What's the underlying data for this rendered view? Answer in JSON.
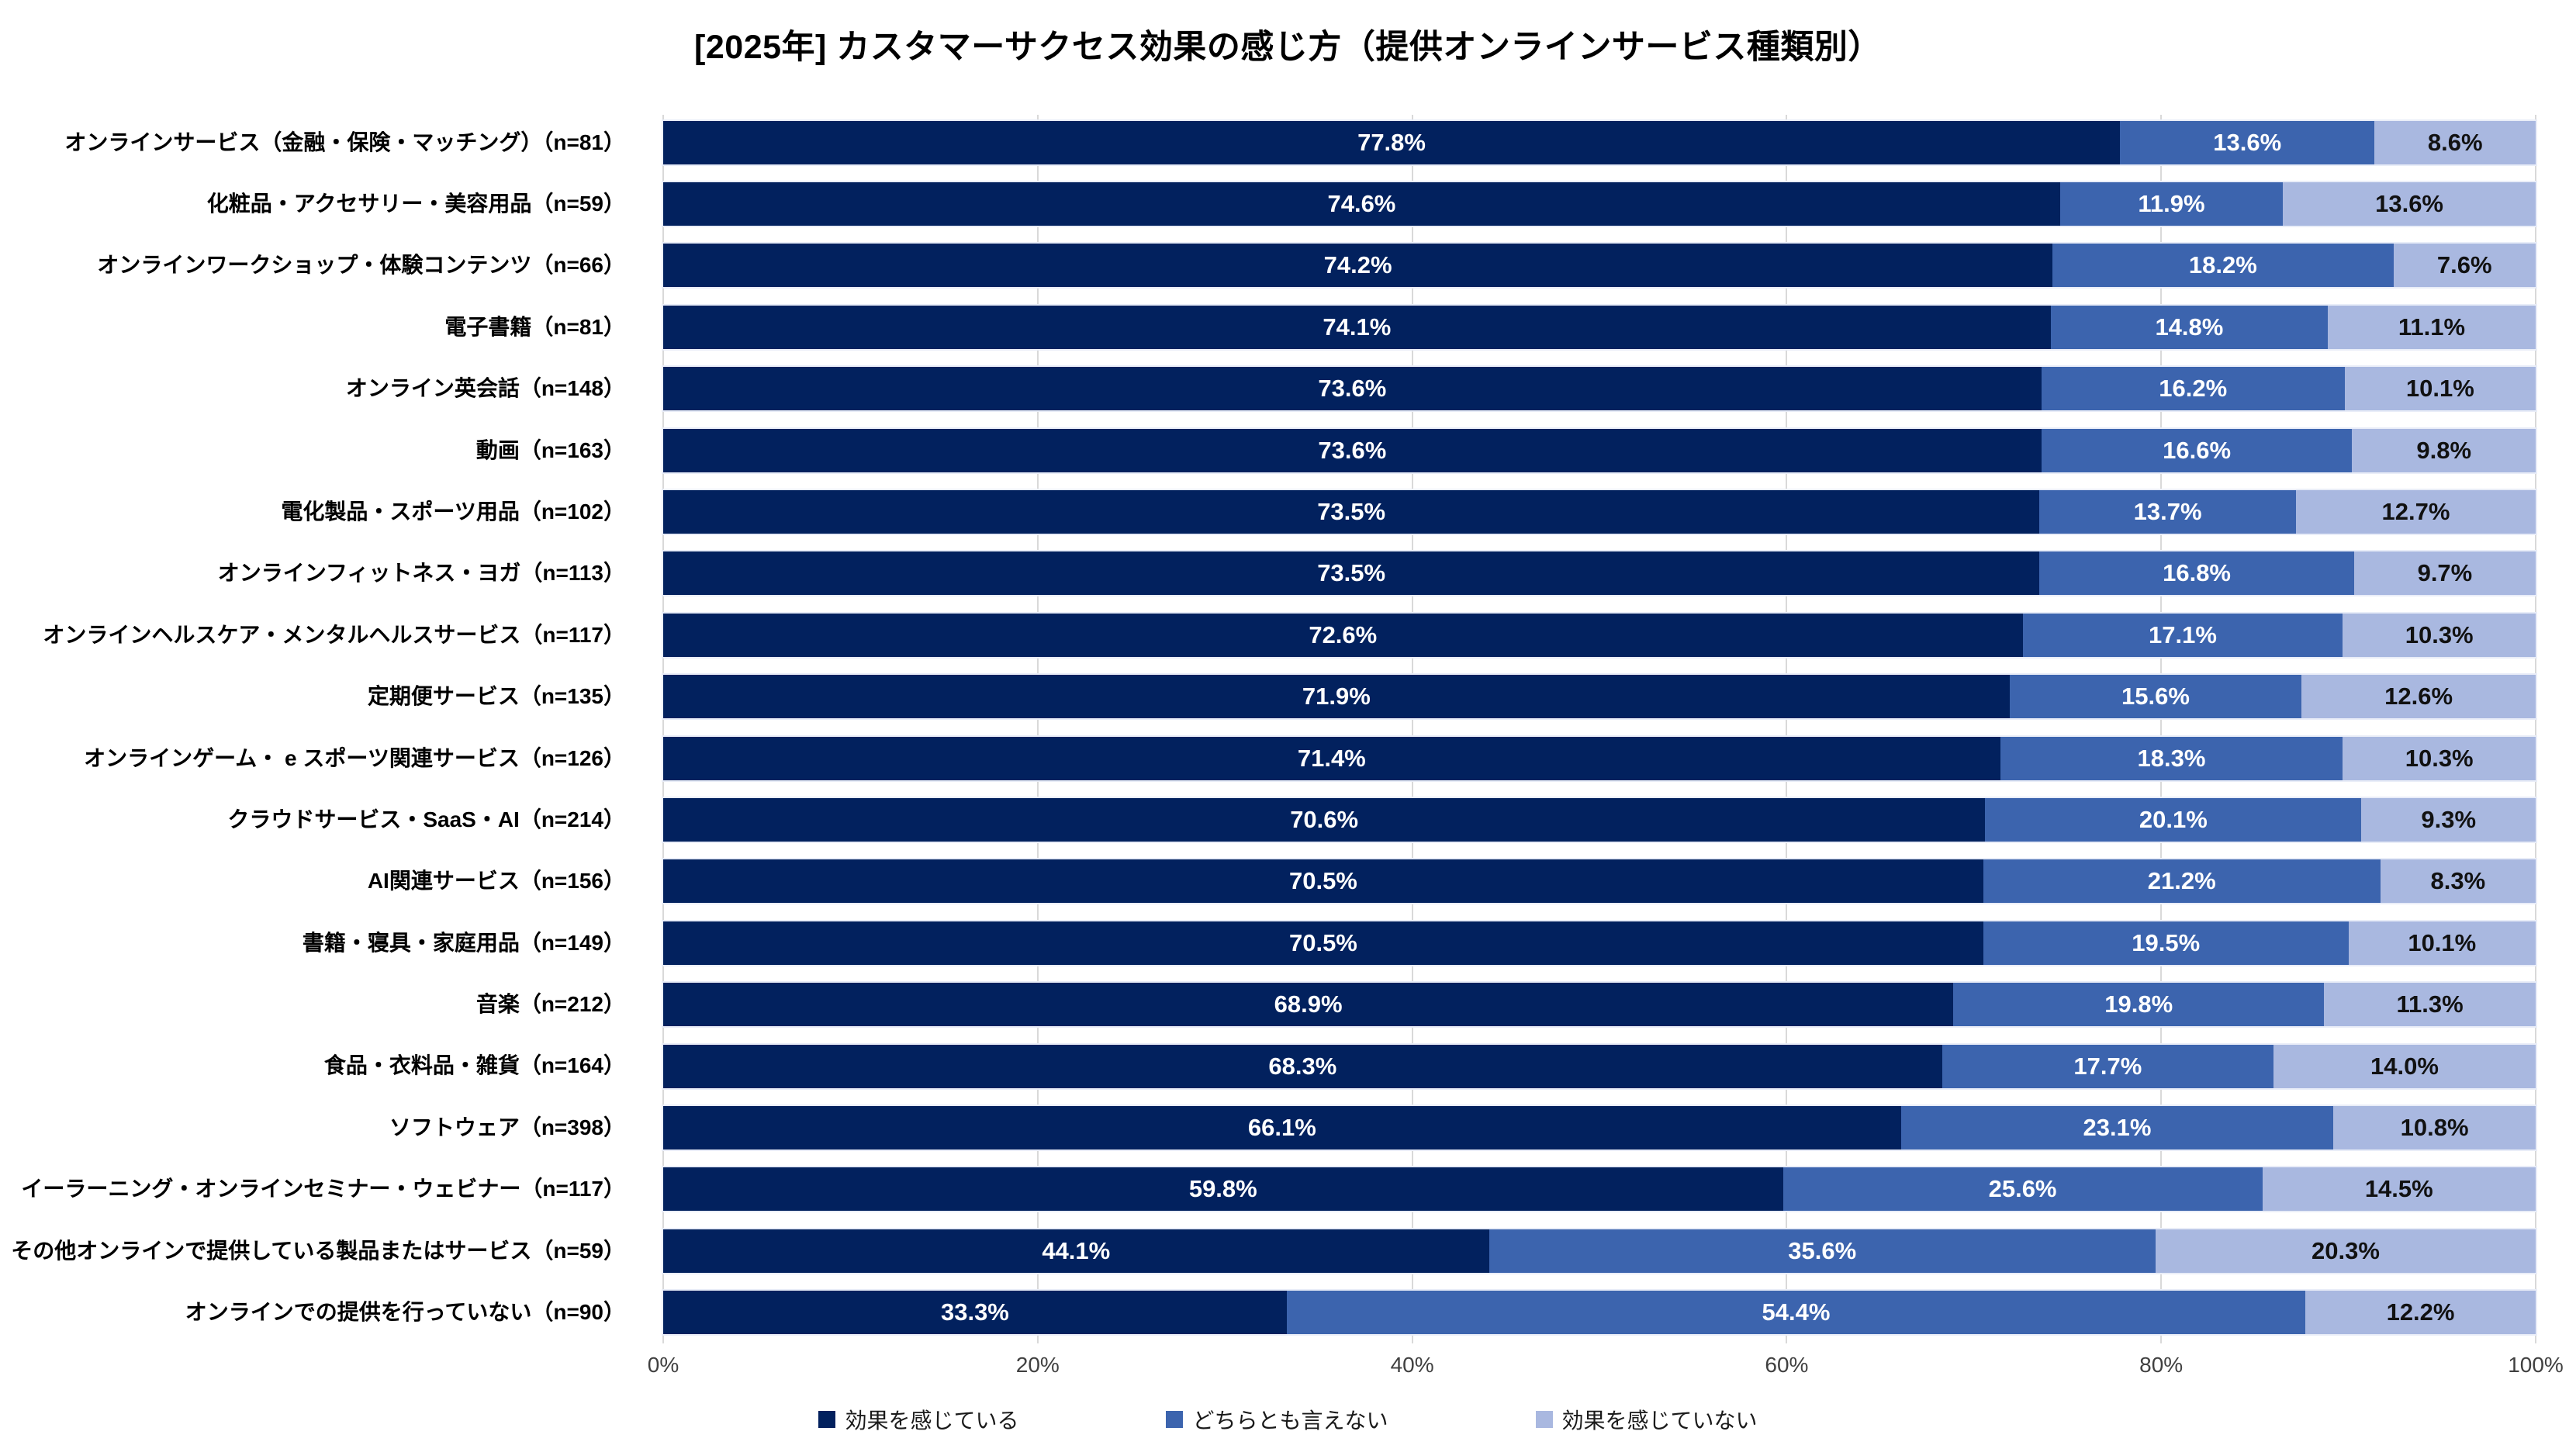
{
  "title": "[2025年] カスタマーサクセス効果の感じ方（提供オンラインサービス種類別）",
  "colors": {
    "series1": "#02215e",
    "series2": "#3c64ae",
    "series3": "#a9b8e0",
    "gridline": "#d9d9d9",
    "axis_text": "#404040"
  },
  "chart_data": {
    "type": "bar",
    "orientation": "horizontal-stacked",
    "title": "[2025年] カスタマーサクセス効果の感じ方（提供オンラインサービス種類別）",
    "xlim": [
      0,
      100
    ],
    "x_ticks": [
      "0%",
      "20%",
      "40%",
      "60%",
      "80%",
      "100%"
    ],
    "grid": true,
    "legend_position": "bottom",
    "value_suffix": "%",
    "categories": [
      {
        "label": "オンラインサービス（金融・保険・マッチング）",
        "n": 81
      },
      {
        "label": "化粧品・アクセサリー・美容用品",
        "n": 59
      },
      {
        "label": "オンラインワークショップ・体験コンテンツ",
        "n": 66
      },
      {
        "label": "電子書籍",
        "n": 81
      },
      {
        "label": "オンライン英会話",
        "n": 148
      },
      {
        "label": "動画",
        "n": 163
      },
      {
        "label": "電化製品・スポーツ用品",
        "n": 102
      },
      {
        "label": "オンラインフィットネス・ヨガ",
        "n": 113
      },
      {
        "label": "オンラインヘルスケア・メンタルヘルスサービス",
        "n": 117
      },
      {
        "label": "定期便サービス",
        "n": 135
      },
      {
        "label": "オンラインゲーム・ e スポーツ関連サービス",
        "n": 126
      },
      {
        "label": "クラウドサービス・SaaS・AI",
        "n": 214
      },
      {
        "label": "AI関連サービス",
        "n": 156
      },
      {
        "label": "書籍・寝具・家庭用品",
        "n": 149
      },
      {
        "label": "音楽",
        "n": 212
      },
      {
        "label": "食品・衣料品・雑貨",
        "n": 164
      },
      {
        "label": "ソフトウェア",
        "n": 398
      },
      {
        "label": "イーラーニング・オンラインセミナー・ウェビナー",
        "n": 117
      },
      {
        "label": "その他オンラインで提供している製品またはサービス",
        "n": 59
      },
      {
        "label": "オンラインでの提供を行っていない",
        "n": 90
      }
    ],
    "series": [
      {
        "name": "効果を感じている",
        "color": "#02215e",
        "label_color": "#ffffff",
        "values": [
          77.8,
          74.6,
          74.2,
          74.1,
          73.6,
          73.6,
          73.5,
          73.5,
          72.6,
          71.9,
          71.4,
          70.6,
          70.5,
          70.5,
          68.9,
          68.3,
          66.1,
          59.8,
          44.1,
          33.3
        ]
      },
      {
        "name": "どちらとも言えない",
        "color": "#3c64ae",
        "label_color": "#ffffff",
        "values": [
          13.6,
          11.9,
          18.2,
          14.8,
          16.2,
          16.6,
          13.7,
          16.8,
          17.1,
          15.6,
          18.3,
          20.1,
          21.2,
          19.5,
          19.8,
          17.7,
          23.1,
          25.6,
          35.6,
          54.4
        ]
      },
      {
        "name": "効果を感じていない",
        "color": "#a9b8e0",
        "label_color": "#111111",
        "values": [
          8.6,
          13.6,
          7.6,
          11.1,
          10.1,
          9.8,
          12.7,
          9.7,
          10.3,
          12.6,
          10.3,
          9.3,
          8.3,
          10.1,
          11.3,
          14.0,
          10.8,
          14.5,
          20.3,
          12.2
        ]
      }
    ]
  }
}
